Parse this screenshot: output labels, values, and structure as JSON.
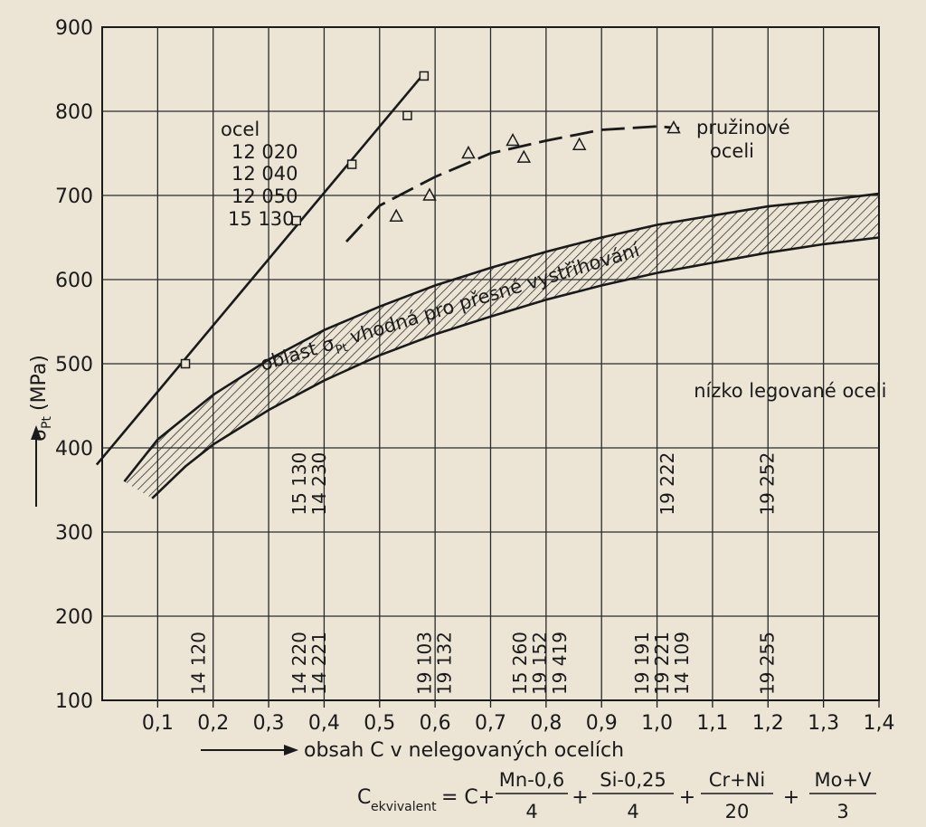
{
  "chart_data": {
    "type": "line",
    "xlabel": "obsah C v nelegovaných ocelích",
    "ylabel_symbol": "σ",
    "ylabel_sub": "Pt",
    "ylabel_unit": "(MPa)",
    "xlim": [
      0,
      1.4
    ],
    "ylim": [
      100,
      900
    ],
    "x_ticks": [
      "0,1",
      "0,2",
      "0,3",
      "0,4",
      "0,5",
      "0,6",
      "0,7",
      "0,8",
      "0,9",
      "1,0",
      "1,1",
      "1,2",
      "1,3",
      "1,4"
    ],
    "y_ticks": [
      "100",
      "200",
      "300",
      "400",
      "500",
      "600",
      "700",
      "800",
      "900"
    ],
    "grid": true,
    "series": [
      {
        "key": "ocel",
        "labels": [
          "ocel",
          "12 020",
          "12 040",
          "12 050",
          "15 130"
        ],
        "style": "solid",
        "line": [
          [
            -0.01,
            380
          ],
          [
            0.58,
            845
          ]
        ],
        "points": [
          [
            0.15,
            500
          ],
          [
            0.35,
            670
          ],
          [
            0.45,
            737
          ],
          [
            0.55,
            795
          ],
          [
            0.58,
            842
          ]
        ]
      },
      {
        "key": "pruzinove",
        "labels": [
          "pružinové",
          "oceli"
        ],
        "style": "dashed",
        "curve": [
          [
            0.44,
            645
          ],
          [
            0.5,
            688
          ],
          [
            0.6,
            722
          ],
          [
            0.7,
            750
          ],
          [
            0.8,
            765
          ],
          [
            0.9,
            778
          ],
          [
            1.0,
            782
          ],
          [
            1.04,
            780
          ]
        ],
        "points": [
          [
            0.53,
            675
          ],
          [
            0.59,
            700
          ],
          [
            0.66,
            750
          ],
          [
            0.74,
            765
          ],
          [
            0.76,
            745
          ],
          [
            0.86,
            760
          ],
          [
            1.03,
            780
          ]
        ]
      }
    ],
    "band": {
      "label": "oblast σPt vhodná pro přesné vystřihování",
      "label_sub_parts": [
        "oblast σ",
        "Pt",
        " vhodná pro přesné vystřihování"
      ],
      "upper": [
        [
          0.04,
          360
        ],
        [
          0.1,
          410
        ],
        [
          0.2,
          463
        ],
        [
          0.3,
          505
        ],
        [
          0.4,
          540
        ],
        [
          0.5,
          568
        ],
        [
          0.6,
          593
        ],
        [
          0.7,
          614
        ],
        [
          0.8,
          633
        ],
        [
          0.9,
          650
        ],
        [
          1.0,
          665
        ],
        [
          1.1,
          676
        ],
        [
          1.2,
          687
        ],
        [
          1.3,
          694
        ],
        [
          1.4,
          702
        ]
      ],
      "lower": [
        [
          0.09,
          340
        ],
        [
          0.15,
          378
        ],
        [
          0.2,
          404
        ],
        [
          0.3,
          445
        ],
        [
          0.4,
          480
        ],
        [
          0.5,
          510
        ],
        [
          0.6,
          535
        ],
        [
          0.7,
          556
        ],
        [
          0.8,
          576
        ],
        [
          0.9,
          593
        ],
        [
          1.0,
          608
        ],
        [
          1.1,
          620
        ],
        [
          1.2,
          632
        ],
        [
          1.3,
          642
        ],
        [
          1.4,
          650
        ]
      ]
    },
    "annotations": [
      {
        "text": "nízko legované oceli",
        "x": 1.24,
        "y": 460
      }
    ],
    "steel_labels": [
      {
        "lines": [
          "14 120"
        ],
        "x": 0.185
      },
      {
        "lines": [
          "14 220",
          "14 221"
        ],
        "x": 0.385
      },
      {
        "lines": [
          "15 130",
          "14 230"
        ],
        "x": 0.385,
        "upper": true
      },
      {
        "lines": [
          "19 103",
          "19 132"
        ],
        "x": 0.61
      },
      {
        "lines": [
          "15 260",
          "19 152",
          "19 419"
        ],
        "x": 0.8
      },
      {
        "lines": [
          "19 191",
          "19 221",
          "14 109"
        ],
        "x": 1.02
      },
      {
        "lines": [
          "19 222"
        ],
        "x": 1.03,
        "upper": true
      },
      {
        "lines": [
          "19 255"
        ],
        "x": 1.21
      },
      {
        "lines": [
          "19 252"
        ],
        "x": 1.21,
        "upper": true
      }
    ],
    "formula": {
      "lhs": "C",
      "lhs_sub": "ekvivalent",
      "eq": "= C+",
      "terms": [
        {
          "num": "Mn-0,6",
          "den": "4"
        },
        {
          "num": "Si-0,25",
          "den": "4"
        },
        {
          "num": "Cr+Ni",
          "den": "20"
        },
        {
          "num": "Mo+V",
          "den": "3"
        }
      ],
      "plus": "+"
    }
  }
}
